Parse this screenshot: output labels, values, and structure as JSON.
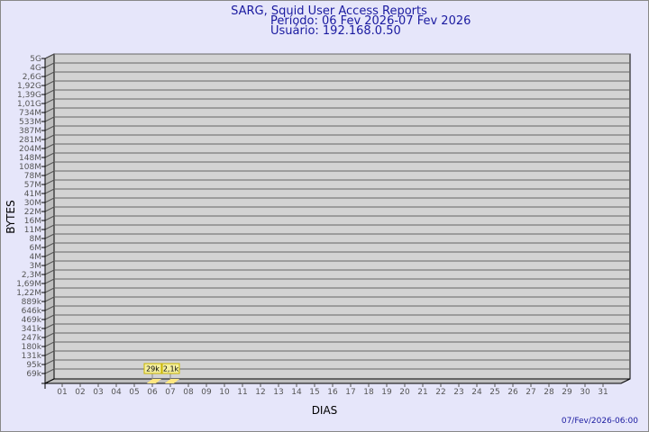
{
  "chart_data": {
    "type": "bar",
    "title": "SARG, Squid User Access Reports",
    "subtitle": [
      "Período: 06 Fev 2026-07 Fev 2026",
      "Usuário: 192.168.0.50"
    ],
    "xlabel": "DIAS",
    "ylabel": "BYTES",
    "y_scale": "log",
    "grid": true,
    "categories": [
      "01",
      "02",
      "03",
      "04",
      "05",
      "06",
      "07",
      "08",
      "09",
      "10",
      "11",
      "12",
      "13",
      "14",
      "15",
      "16",
      "17",
      "18",
      "19",
      "20",
      "21",
      "22",
      "23",
      "24",
      "25",
      "26",
      "27",
      "28",
      "29",
      "30",
      "31"
    ],
    "y_tick_labels": [
      "5G",
      "4G",
      "2,6G",
      "1,92G",
      "1,39G",
      "1,01G",
      "734M",
      "533M",
      "387M",
      "281M",
      "204M",
      "148M",
      "108M",
      "78M",
      "57M",
      "41M",
      "30M",
      "22M",
      "16M",
      "11M",
      "8M",
      "6M",
      "4M",
      "3M",
      "2,3M",
      "1,69M",
      "1,22M",
      "889k",
      "646k",
      "469k",
      "341k",
      "247k",
      "180k",
      "131k",
      "95k",
      "69k"
    ],
    "series": [
      {
        "points": [
          {
            "x": "06",
            "value": 29000,
            "label": "29k"
          },
          {
            "x": "07",
            "value": 2100,
            "label": "2,1k"
          }
        ]
      }
    ],
    "colors": {
      "bar": "#ffe680",
      "wall": "#d3d3d3",
      "side": "#bebebe",
      "background": "#e6e6fa",
      "title": "#1a1aa0",
      "label_box": "#f5f0a0"
    }
  },
  "timestamp": "07/Fev/2026-06:00"
}
